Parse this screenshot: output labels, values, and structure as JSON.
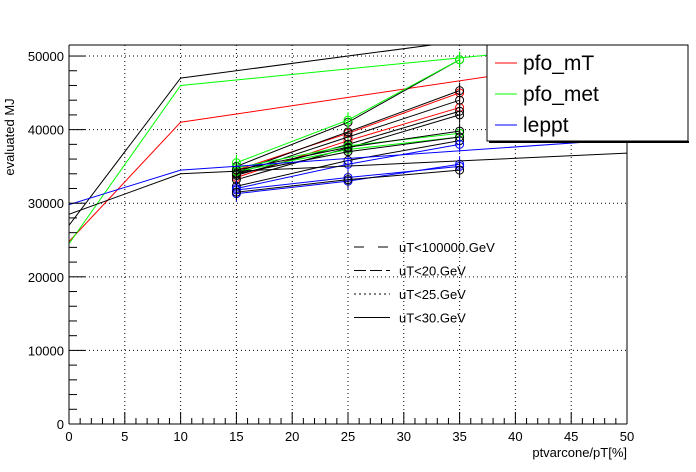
{
  "chart_data": {
    "type": "line",
    "title": "",
    "xlabel": "ptvarcone/pT[%]",
    "ylabel": "evaluated MJ",
    "xlim": [
      0,
      50
    ],
    "ylim": [
      0,
      51500
    ],
    "x_ticks": [
      "0",
      "5",
      "10",
      "15",
      "20",
      "25",
      "30",
      "35",
      "40",
      "45",
      "50"
    ],
    "y_ticks": [
      "0",
      "10000",
      "20000",
      "30000",
      "40000",
      "50000"
    ],
    "grid": true,
    "x_points": [
      15,
      25,
      35
    ],
    "legend_vars": {
      "position": "top-right",
      "entries": [
        {
          "label": "pfo_mT",
          "color": "#ff0000"
        },
        {
          "label": "pfo_met",
          "color": "#00ff00"
        },
        {
          "label": "leppt",
          "color": "#0000ff"
        }
      ]
    },
    "legend_cuts": {
      "position": "center",
      "entries": [
        {
          "label": "uT<100000.GeV",
          "dash": "10,14"
        },
        {
          "label": "uT<20.GeV",
          "dash": "12,4"
        },
        {
          "label": "uT<25.GeV",
          "dash": "2,3"
        },
        {
          "label": "uT<30.GeV",
          "dash": "none"
        }
      ]
    },
    "series": [
      {
        "color": "#ff0000",
        "y": [
          33500,
          38500,
          43000
        ],
        "fit": [
          24800,
          41000,
          50000
        ]
      },
      {
        "color": "#ff0000",
        "y": [
          34500,
          39500,
          45000
        ]
      },
      {
        "color": "#000000",
        "y": [
          34000,
          39000,
          44000
        ]
      },
      {
        "color": "#000000",
        "y": [
          35000,
          41000,
          49500
        ],
        "fit": [
          27000,
          47000,
          55000
        ]
      },
      {
        "color": "#000000",
        "y": [
          34200,
          39700,
          45300
        ]
      },
      {
        "color": "#000000",
        "y": [
          33800,
          38000,
          42500
        ]
      },
      {
        "color": "#000000",
        "y": [
          33200,
          37500,
          42000
        ]
      },
      {
        "color": "#00ff00",
        "y": [
          35500,
          41300,
          49500
        ],
        "fit": [
          24500,
          46000,
          52000
        ]
      },
      {
        "color": "#00ff00",
        "y": [
          34800,
          37800,
          39500
        ]
      },
      {
        "color": "#00ff00",
        "y": [
          34300,
          37300,
          39000
        ]
      },
      {
        "color": "#000000",
        "y": [
          34500,
          37600,
          39800
        ]
      },
      {
        "color": "#000000",
        "y": [
          34000,
          37000,
          39000
        ]
      },
      {
        "color": "#000000",
        "y": [
          32300,
          35800,
          38500
        ]
      },
      {
        "color": "#0000ff",
        "y": [
          32000,
          35300,
          38000
        ]
      },
      {
        "color": "#0000ff",
        "y": [
          31300,
          33000,
          35300
        ],
        "fit": [
          29800,
          34500,
          38700
        ]
      },
      {
        "color": "#0000ff",
        "y": [
          31800,
          33500,
          35000
        ]
      },
      {
        "color": "#000000",
        "y": [
          31500,
          33200,
          34500
        ],
        "fit": [
          28500,
          34000,
          36800
        ]
      }
    ]
  }
}
